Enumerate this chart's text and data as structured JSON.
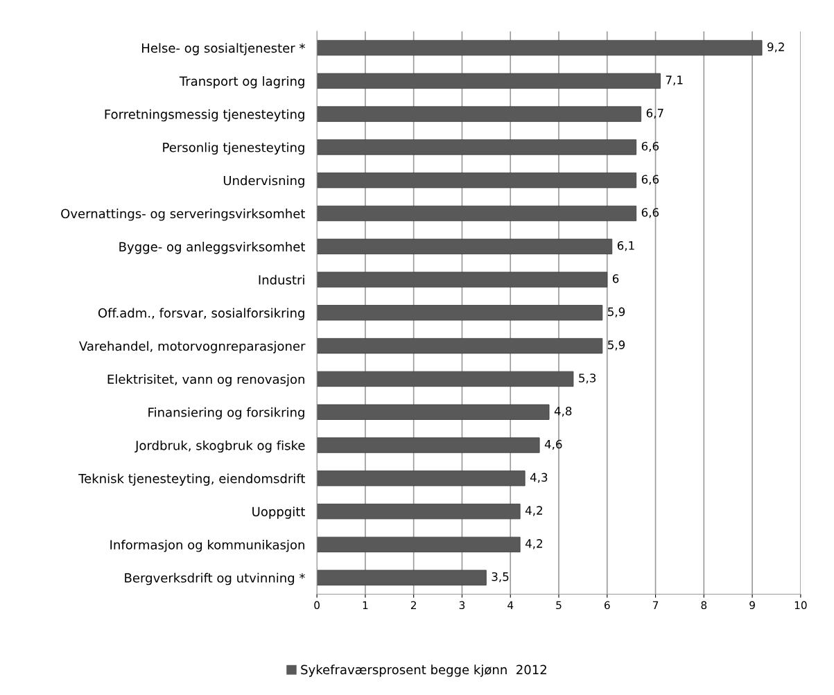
{
  "chart_data": {
    "type": "bar",
    "orientation": "horizontal",
    "categories": [
      "Helse- og sosialtjenester *",
      "Transport og lagring",
      "Forretningsmessig tjenesteyting",
      "Personlig tjenesteyting",
      "Undervisning",
      "Overnattings- og serveringsvirksomhet",
      "Bygge- og anleggsvirksomhet",
      "Industri",
      "Off.adm., forsvar, sosialforsikring",
      "Varehandel, motorvognreparasjoner",
      "Elektrisitet, vann og renovasjon",
      "Finansiering og forsikring",
      "Jordbruk, skogbruk og fiske",
      "Teknisk tjenesteyting, eiendomsdrift",
      "Uoppgitt",
      "Informasjon og kommunikasjon",
      "Bergverksdrift og utvinning *"
    ],
    "series": [
      {
        "name": "Sykefraværsprosent begge kjønn  2012",
        "color": "#595959",
        "values": [
          9.2,
          7.1,
          6.7,
          6.6,
          6.6,
          6.6,
          6.1,
          6,
          5.9,
          5.9,
          5.3,
          4.8,
          4.6,
          4.3,
          4.2,
          4.2,
          3.5
        ],
        "value_labels": [
          "9,2",
          "7,1",
          "6,7",
          "6,6",
          "6,6",
          "6,6",
          "6,1",
          "6",
          "5,9",
          "5,9",
          "5,3",
          "4,8",
          "4,6",
          "4,3",
          "4,2",
          "4,2",
          "3,5"
        ]
      }
    ],
    "xlim": [
      0,
      10
    ],
    "xticks": [
      0,
      1,
      2,
      3,
      4,
      5,
      6,
      7,
      8,
      9,
      10
    ],
    "grid": "x",
    "legend": "bottom"
  }
}
